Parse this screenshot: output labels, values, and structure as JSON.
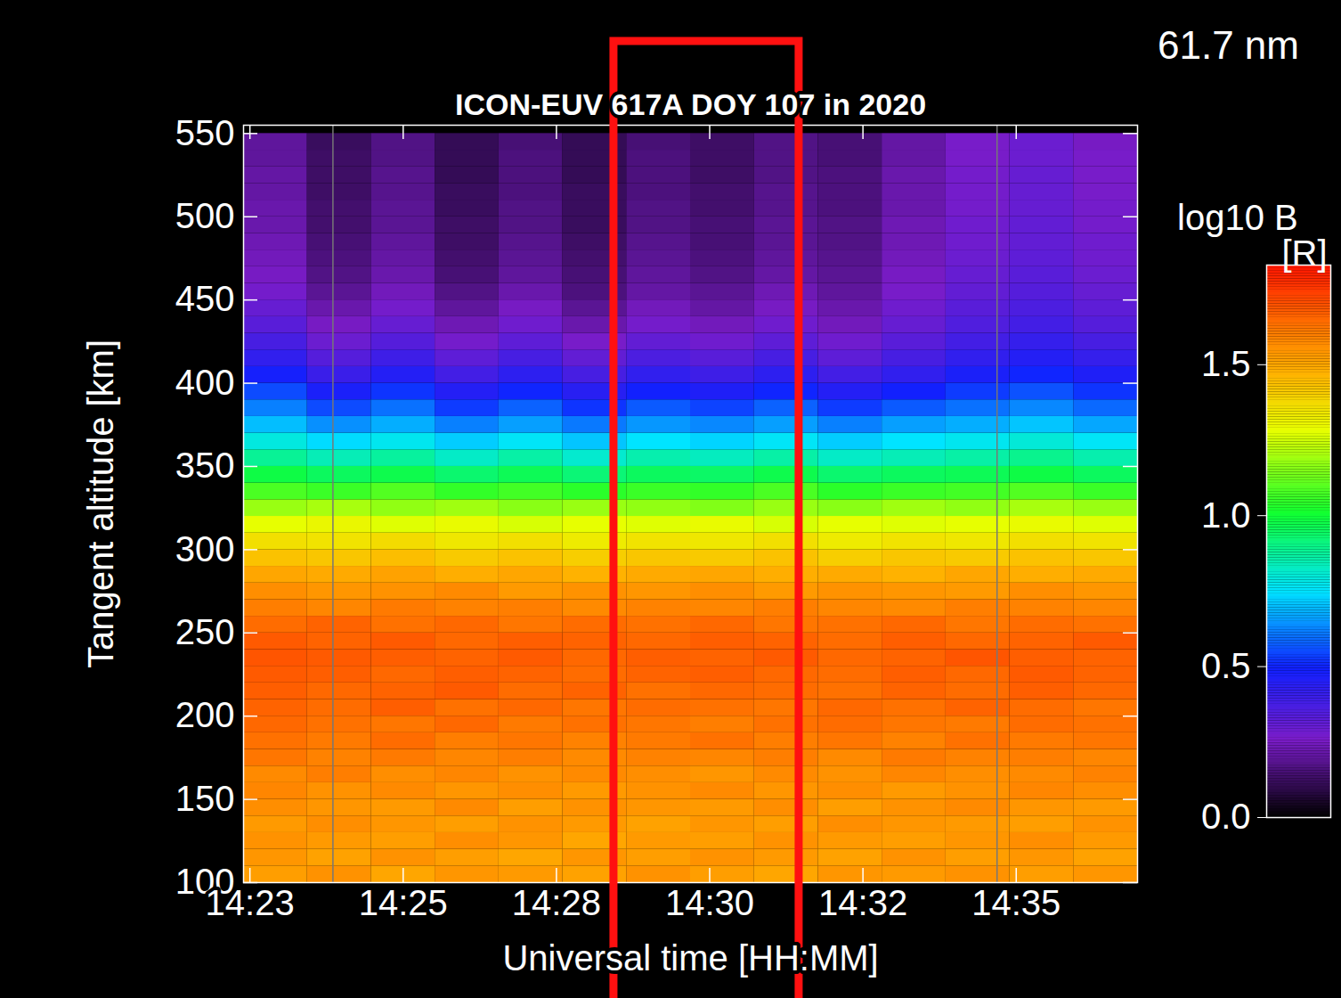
{
  "chart_data": {
    "type": "heatmap",
    "title": "ICON-EUV 617A DOY 107 in 2020",
    "subtitle": "61.7 nm",
    "x_label": "Universal time [HH:MM]",
    "y_label": "Tangent altitude [km]",
    "xlim": [
      862.7,
      876.7
    ],
    "xticks": [
      {
        "value": 862.8,
        "label": "14:23"
      },
      {
        "value": 865.2,
        "label": "14:25"
      },
      {
        "value": 867.6,
        "label": "14:28"
      },
      {
        "value": 870.0,
        "label": "14:30"
      },
      {
        "value": 872.4,
        "label": "14:32"
      },
      {
        "value": 874.8,
        "label": "14:35"
      }
    ],
    "ylim": [
      100,
      555
    ],
    "yticks": [
      100,
      150,
      200,
      250,
      300,
      350,
      400,
      450,
      500,
      550
    ],
    "x_edges": [
      862.7,
      863.7,
      864.7,
      865.7,
      866.7,
      867.7,
      868.7,
      869.7,
      870.7,
      871.7,
      872.7,
      873.7,
      874.7,
      875.7,
      876.7
    ],
    "y_edges": [
      100,
      110,
      120,
      130,
      140,
      150,
      160,
      170,
      180,
      190,
      200,
      210,
      220,
      230,
      240,
      250,
      260,
      270,
      280,
      290,
      300,
      310,
      320,
      330,
      340,
      350,
      360,
      370,
      380,
      390,
      400,
      410,
      420,
      430,
      440,
      450,
      460,
      470,
      480,
      490,
      500,
      510,
      520,
      530,
      540,
      550
    ],
    "cells": [
      [
        1.52,
        1.55,
        1.5,
        1.54,
        1.53,
        1.51,
        1.55,
        1.52,
        1.5,
        1.54,
        1.53,
        1.55,
        1.52,
        1.54
      ],
      [
        1.54,
        1.51,
        1.55,
        1.52,
        1.5,
        1.54,
        1.52,
        1.55,
        1.53,
        1.51,
        1.55,
        1.52,
        1.54,
        1.51
      ],
      [
        1.55,
        1.53,
        1.52,
        1.56,
        1.54,
        1.5,
        1.53,
        1.52,
        1.55,
        1.53,
        1.52,
        1.54,
        1.56,
        1.53
      ],
      [
        1.53,
        1.56,
        1.54,
        1.52,
        1.55,
        1.53,
        1.51,
        1.54,
        1.52,
        1.56,
        1.54,
        1.53,
        1.52,
        1.55
      ],
      [
        1.56,
        1.54,
        1.53,
        1.57,
        1.52,
        1.55,
        1.54,
        1.53,
        1.56,
        1.52,
        1.55,
        1.57,
        1.54,
        1.53
      ],
      [
        1.58,
        1.55,
        1.57,
        1.54,
        1.56,
        1.53,
        1.55,
        1.57,
        1.54,
        1.56,
        1.53,
        1.55,
        1.58,
        1.56
      ],
      [
        1.57,
        1.6,
        1.56,
        1.58,
        1.55,
        1.57,
        1.56,
        1.54,
        1.57,
        1.55,
        1.58,
        1.56,
        1.57,
        1.59
      ],
      [
        1.62,
        1.59,
        1.61,
        1.58,
        1.6,
        1.57,
        1.59,
        1.58,
        1.6,
        1.57,
        1.61,
        1.59,
        1.6,
        1.58
      ],
      [
        1.63,
        1.61,
        1.64,
        1.6,
        1.62,
        1.59,
        1.61,
        1.63,
        1.6,
        1.62,
        1.59,
        1.63,
        1.61,
        1.62
      ],
      [
        1.65,
        1.63,
        1.62,
        1.65,
        1.61,
        1.63,
        1.62,
        1.6,
        1.63,
        1.64,
        1.62,
        1.61,
        1.64,
        1.63
      ],
      [
        1.66,
        1.64,
        1.67,
        1.63,
        1.65,
        1.62,
        1.64,
        1.63,
        1.62,
        1.65,
        1.63,
        1.66,
        1.64,
        1.62
      ],
      [
        1.67,
        1.65,
        1.66,
        1.68,
        1.64,
        1.66,
        1.63,
        1.65,
        1.64,
        1.63,
        1.66,
        1.64,
        1.67,
        1.65
      ],
      [
        1.68,
        1.67,
        1.65,
        1.67,
        1.66,
        1.64,
        1.66,
        1.67,
        1.65,
        1.64,
        1.67,
        1.65,
        1.68,
        1.66
      ],
      [
        1.69,
        1.68,
        1.67,
        1.66,
        1.68,
        1.65,
        1.67,
        1.66,
        1.68,
        1.65,
        1.66,
        1.69,
        1.67,
        1.66
      ],
      [
        1.68,
        1.66,
        1.68,
        1.65,
        1.67,
        1.66,
        1.65,
        1.67,
        1.66,
        1.64,
        1.67,
        1.65,
        1.66,
        1.68
      ],
      [
        1.64,
        1.66,
        1.63,
        1.65,
        1.62,
        1.64,
        1.63,
        1.65,
        1.62,
        1.63,
        1.65,
        1.62,
        1.64,
        1.63
      ],
      [
        1.6,
        1.58,
        1.61,
        1.59,
        1.6,
        1.57,
        1.59,
        1.58,
        1.6,
        1.58,
        1.57,
        1.6,
        1.59,
        1.58
      ],
      [
        1.56,
        1.54,
        1.55,
        1.57,
        1.53,
        1.55,
        1.54,
        1.56,
        1.53,
        1.55,
        1.54,
        1.53,
        1.56,
        1.54
      ],
      [
        1.5,
        1.49,
        1.51,
        1.48,
        1.5,
        1.47,
        1.49,
        1.5,
        1.48,
        1.49,
        1.47,
        1.5,
        1.48,
        1.49
      ],
      [
        1.43,
        1.42,
        1.44,
        1.41,
        1.43,
        1.4,
        1.42,
        1.41,
        1.43,
        1.4,
        1.42,
        1.41,
        1.43,
        1.42
      ],
      [
        1.36,
        1.35,
        1.37,
        1.34,
        1.36,
        1.33,
        1.35,
        1.34,
        1.36,
        1.33,
        1.35,
        1.34,
        1.36,
        1.35
      ],
      [
        1.28,
        1.3,
        1.27,
        1.29,
        1.26,
        1.28,
        1.27,
        1.29,
        1.26,
        1.28,
        1.27,
        1.28,
        1.29,
        1.27
      ],
      [
        1.18,
        1.2,
        1.17,
        1.19,
        1.16,
        1.18,
        1.17,
        1.15,
        1.18,
        1.16,
        1.19,
        1.17,
        1.2,
        1.18
      ],
      [
        1.08,
        1.06,
        1.09,
        1.05,
        1.07,
        1.04,
        1.06,
        1.05,
        1.08,
        1.04,
        1.06,
        1.07,
        1.09,
        1.06
      ],
      [
        0.98,
        0.95,
        0.97,
        0.93,
        0.96,
        0.92,
        0.95,
        0.94,
        0.97,
        0.93,
        0.95,
        0.96,
        0.98,
        0.95
      ],
      [
        0.88,
        0.84,
        0.87,
        0.82,
        0.86,
        0.81,
        0.85,
        0.83,
        0.86,
        0.82,
        0.84,
        0.86,
        0.89,
        0.85
      ],
      [
        0.79,
        0.74,
        0.77,
        0.72,
        0.76,
        0.71,
        0.75,
        0.73,
        0.76,
        0.72,
        0.75,
        0.77,
        0.8,
        0.76
      ],
      [
        0.7,
        0.64,
        0.68,
        0.62,
        0.66,
        0.61,
        0.65,
        0.63,
        0.66,
        0.62,
        0.66,
        0.68,
        0.71,
        0.67
      ],
      [
        0.62,
        0.55,
        0.6,
        0.53,
        0.58,
        0.52,
        0.57,
        0.54,
        0.58,
        0.53,
        0.57,
        0.6,
        0.63,
        0.59
      ],
      [
        0.55,
        0.47,
        0.52,
        0.45,
        0.5,
        0.44,
        0.49,
        0.46,
        0.5,
        0.45,
        0.49,
        0.53,
        0.56,
        0.52
      ],
      [
        0.48,
        0.4,
        0.45,
        0.38,
        0.43,
        0.37,
        0.42,
        0.39,
        0.43,
        0.38,
        0.42,
        0.47,
        0.5,
        0.46
      ],
      [
        0.42,
        0.34,
        0.39,
        0.32,
        0.37,
        0.31,
        0.36,
        0.33,
        0.37,
        0.32,
        0.37,
        0.42,
        0.45,
        0.41
      ],
      [
        0.37,
        0.29,
        0.34,
        0.27,
        0.32,
        0.26,
        0.31,
        0.28,
        0.32,
        0.28,
        0.33,
        0.38,
        0.41,
        0.37
      ],
      [
        0.33,
        0.25,
        0.3,
        0.23,
        0.28,
        0.22,
        0.27,
        0.24,
        0.28,
        0.24,
        0.3,
        0.35,
        0.38,
        0.34
      ],
      [
        0.3,
        0.22,
        0.27,
        0.2,
        0.25,
        0.19,
        0.24,
        0.21,
        0.25,
        0.22,
        0.28,
        0.33,
        0.36,
        0.32
      ],
      [
        0.27,
        0.19,
        0.24,
        0.17,
        0.22,
        0.16,
        0.21,
        0.19,
        0.23,
        0.2,
        0.26,
        0.31,
        0.34,
        0.3
      ],
      [
        0.25,
        0.17,
        0.22,
        0.15,
        0.2,
        0.15,
        0.2,
        0.17,
        0.21,
        0.19,
        0.25,
        0.3,
        0.33,
        0.29
      ],
      [
        0.24,
        0.16,
        0.21,
        0.14,
        0.19,
        0.14,
        0.19,
        0.16,
        0.2,
        0.18,
        0.24,
        0.29,
        0.32,
        0.28
      ],
      [
        0.23,
        0.15,
        0.2,
        0.13,
        0.18,
        0.13,
        0.18,
        0.15,
        0.19,
        0.17,
        0.23,
        0.28,
        0.31,
        0.28
      ],
      [
        0.22,
        0.14,
        0.19,
        0.13,
        0.17,
        0.12,
        0.17,
        0.15,
        0.19,
        0.17,
        0.23,
        0.28,
        0.31,
        0.27
      ],
      [
        0.22,
        0.14,
        0.19,
        0.12,
        0.17,
        0.12,
        0.17,
        0.14,
        0.18,
        0.16,
        0.22,
        0.27,
        0.3,
        0.27
      ],
      [
        0.21,
        0.13,
        0.18,
        0.12,
        0.16,
        0.12,
        0.16,
        0.14,
        0.18,
        0.16,
        0.22,
        0.27,
        0.3,
        0.26
      ],
      [
        0.21,
        0.13,
        0.18,
        0.11,
        0.16,
        0.11,
        0.16,
        0.13,
        0.17,
        0.16,
        0.22,
        0.27,
        0.3,
        0.26
      ],
      [
        0.2,
        0.13,
        0.17,
        0.11,
        0.16,
        0.11,
        0.16,
        0.13,
        0.17,
        0.15,
        0.21,
        0.26,
        0.29,
        0.26
      ],
      [
        0.2,
        0.12,
        0.17,
        0.11,
        0.15,
        0.11,
        0.15,
        0.13,
        0.17,
        0.15,
        0.21,
        0.26,
        0.29,
        0.25
      ]
    ],
    "colorbar": {
      "title": "log10 B",
      "unit": "[R]",
      "range": [
        0,
        1.83
      ],
      "ticks": [
        {
          "value": 0,
          "label": "0.0"
        },
        {
          "value": 0.5,
          "label": "0.5"
        },
        {
          "value": 1,
          "label": "1.0"
        },
        {
          "value": 1.5,
          "label": "1.5"
        }
      ]
    },
    "vertical_lines": [
      864.1,
      874.5
    ],
    "highlight": [
      868.5,
      871.4
    ]
  }
}
